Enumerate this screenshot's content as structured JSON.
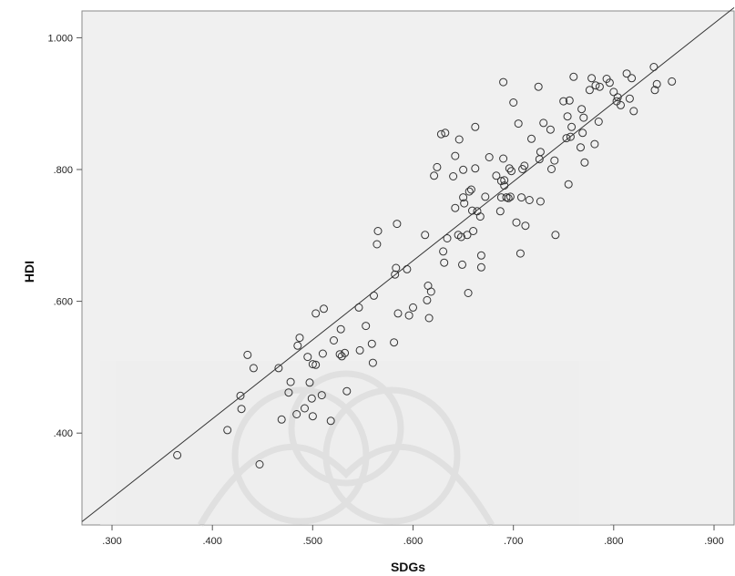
{
  "chart_data": {
    "type": "scatter",
    "xlabel": "SDGs",
    "ylabel": "HDI",
    "xlim": [
      0.27,
      0.92
    ],
    "ylim": [
      0.26,
      1.04
    ],
    "x_ticks": [
      ".300",
      ".400",
      ".500",
      ".600",
      ".700",
      ".800",
      ".900"
    ],
    "x_tick_values": [
      0.3,
      0.4,
      0.5,
      0.6,
      0.7,
      0.8,
      0.9
    ],
    "y_ticks": [
      ".400",
      ".600",
      ".800",
      "1.000"
    ],
    "y_tick_values": [
      0.4,
      0.6,
      0.8,
      1.0
    ],
    "grid": false,
    "fit_line": {
      "x": [
        0.27,
        0.92
      ],
      "y": [
        0.265,
        1.045
      ]
    },
    "plot_background": "#f0f0f0",
    "marker_color": "#333333",
    "line_color": "#333333",
    "points": [
      [
        0.365,
        0.366
      ],
      [
        0.415,
        0.404
      ],
      [
        0.428,
        0.456
      ],
      [
        0.429,
        0.436
      ],
      [
        0.435,
        0.518
      ],
      [
        0.441,
        0.498
      ],
      [
        0.447,
        0.352
      ],
      [
        0.466,
        0.498
      ],
      [
        0.469,
        0.42
      ],
      [
        0.476,
        0.461
      ],
      [
        0.478,
        0.477
      ],
      [
        0.484,
        0.428
      ],
      [
        0.485,
        0.532
      ],
      [
        0.487,
        0.544
      ],
      [
        0.492,
        0.437
      ],
      [
        0.495,
        0.515
      ],
      [
        0.497,
        0.476
      ],
      [
        0.499,
        0.452
      ],
      [
        0.5,
        0.425
      ],
      [
        0.5,
        0.504
      ],
      [
        0.503,
        0.503
      ],
      [
        0.503,
        0.581
      ],
      [
        0.509,
        0.457
      ],
      [
        0.51,
        0.52
      ],
      [
        0.511,
        0.588
      ],
      [
        0.518,
        0.418
      ],
      [
        0.521,
        0.54
      ],
      [
        0.527,
        0.519
      ],
      [
        0.528,
        0.557
      ],
      [
        0.529,
        0.516
      ],
      [
        0.532,
        0.521
      ],
      [
        0.534,
        0.463
      ],
      [
        0.546,
        0.59
      ],
      [
        0.547,
        0.525
      ],
      [
        0.553,
        0.562
      ],
      [
        0.559,
        0.535
      ],
      [
        0.56,
        0.506
      ],
      [
        0.561,
        0.608
      ],
      [
        0.564,
        0.686
      ],
      [
        0.565,
        0.706
      ],
      [
        0.581,
        0.537
      ],
      [
        0.582,
        0.64
      ],
      [
        0.583,
        0.65
      ],
      [
        0.584,
        0.717
      ],
      [
        0.585,
        0.581
      ],
      [
        0.594,
        0.648
      ],
      [
        0.596,
        0.578
      ],
      [
        0.6,
        0.59
      ],
      [
        0.612,
        0.7
      ],
      [
        0.614,
        0.601
      ],
      [
        0.615,
        0.623
      ],
      [
        0.616,
        0.574
      ],
      [
        0.618,
        0.614
      ],
      [
        0.621,
        0.79
      ],
      [
        0.624,
        0.803
      ],
      [
        0.628,
        0.853
      ],
      [
        0.63,
        0.675
      ],
      [
        0.631,
        0.658
      ],
      [
        0.632,
        0.855
      ],
      [
        0.634,
        0.695
      ],
      [
        0.64,
        0.789
      ],
      [
        0.642,
        0.741
      ],
      [
        0.642,
        0.82
      ],
      [
        0.645,
        0.7
      ],
      [
        0.646,
        0.845
      ],
      [
        0.648,
        0.697
      ],
      [
        0.649,
        0.655
      ],
      [
        0.65,
        0.757
      ],
      [
        0.65,
        0.799
      ],
      [
        0.651,
        0.748
      ],
      [
        0.654,
        0.7
      ],
      [
        0.655,
        0.612
      ],
      [
        0.656,
        0.766
      ],
      [
        0.658,
        0.769
      ],
      [
        0.659,
        0.737
      ],
      [
        0.66,
        0.706
      ],
      [
        0.662,
        0.801
      ],
      [
        0.662,
        0.864
      ],
      [
        0.664,
        0.736
      ],
      [
        0.667,
        0.728
      ],
      [
        0.668,
        0.669
      ],
      [
        0.668,
        0.651
      ],
      [
        0.672,
        0.758
      ],
      [
        0.676,
        0.818
      ],
      [
        0.683,
        0.79
      ],
      [
        0.687,
        0.736
      ],
      [
        0.688,
        0.757
      ],
      [
        0.688,
        0.782
      ],
      [
        0.69,
        0.816
      ],
      [
        0.69,
        0.932
      ],
      [
        0.691,
        0.775
      ],
      [
        0.691,
        0.783
      ],
      [
        0.693,
        0.757
      ],
      [
        0.695,
        0.756
      ],
      [
        0.696,
        0.801
      ],
      [
        0.697,
        0.758
      ],
      [
        0.698,
        0.797
      ],
      [
        0.7,
        0.901
      ],
      [
        0.703,
        0.719
      ],
      [
        0.705,
        0.869
      ],
      [
        0.707,
        0.672
      ],
      [
        0.708,
        0.757
      ],
      [
        0.709,
        0.8
      ],
      [
        0.711,
        0.805
      ],
      [
        0.712,
        0.714
      ],
      [
        0.716,
        0.753
      ],
      [
        0.718,
        0.846
      ],
      [
        0.725,
        0.925
      ],
      [
        0.726,
        0.815
      ],
      [
        0.727,
        0.826
      ],
      [
        0.727,
        0.751
      ],
      [
        0.73,
        0.87
      ],
      [
        0.737,
        0.86
      ],
      [
        0.738,
        0.8
      ],
      [
        0.741,
        0.813
      ],
      [
        0.742,
        0.7
      ],
      [
        0.75,
        0.903
      ],
      [
        0.753,
        0.847
      ],
      [
        0.754,
        0.88
      ],
      [
        0.755,
        0.777
      ],
      [
        0.756,
        0.904
      ],
      [
        0.757,
        0.849
      ],
      [
        0.758,
        0.864
      ],
      [
        0.76,
        0.94
      ],
      [
        0.767,
        0.833
      ],
      [
        0.768,
        0.891
      ],
      [
        0.769,
        0.855
      ],
      [
        0.77,
        0.878
      ],
      [
        0.771,
        0.81
      ],
      [
        0.776,
        0.92
      ],
      [
        0.778,
        0.938
      ],
      [
        0.781,
        0.838
      ],
      [
        0.782,
        0.927
      ],
      [
        0.785,
        0.872
      ],
      [
        0.786,
        0.925
      ],
      [
        0.793,
        0.937
      ],
      [
        0.796,
        0.931
      ],
      [
        0.8,
        0.917
      ],
      [
        0.803,
        0.903
      ],
      [
        0.804,
        0.909
      ],
      [
        0.807,
        0.897
      ],
      [
        0.813,
        0.945
      ],
      [
        0.816,
        0.907
      ],
      [
        0.818,
        0.938
      ],
      [
        0.82,
        0.888
      ],
      [
        0.84,
        0.955
      ],
      [
        0.841,
        0.92
      ],
      [
        0.843,
        0.929
      ],
      [
        0.858,
        0.933
      ]
    ]
  }
}
